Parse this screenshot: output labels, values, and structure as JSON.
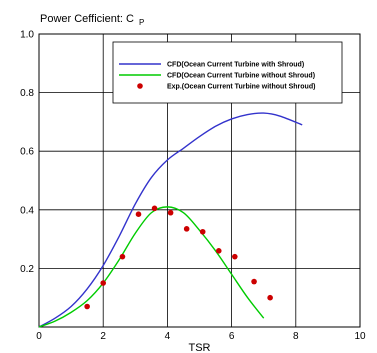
{
  "chart_data": {
    "type": "line",
    "title": "Power Cefficient: C",
    "title_subscript": "P",
    "xlabel": "TSR",
    "ylabel": "",
    "xlim": [
      0,
      10
    ],
    "ylim": [
      0,
      1.0
    ],
    "x_ticks": [
      "0",
      "2",
      "4",
      "6",
      "8",
      "10"
    ],
    "y_ticks": [
      "0.2",
      "0.4",
      "0.6",
      "0.8",
      "1.0"
    ],
    "grid": true,
    "legend_position": "top-right",
    "series": [
      {
        "name": "CFD(Ocean Current Turbine with Shroud)",
        "style": "line",
        "color": "#3333cc",
        "x": [
          0,
          0.5,
          1.0,
          1.5,
          2.0,
          2.5,
          3.0,
          3.5,
          4.0,
          4.5,
          5.0,
          5.5,
          6.0,
          6.5,
          7.0,
          7.5,
          8.2
        ],
        "y": [
          0,
          0.03,
          0.07,
          0.13,
          0.21,
          0.31,
          0.42,
          0.51,
          0.57,
          0.61,
          0.65,
          0.685,
          0.71,
          0.725,
          0.73,
          0.72,
          0.69
        ]
      },
      {
        "name": "CFD(Ocean Current Turbine without Shroud)",
        "style": "line",
        "color": "#00cc00",
        "x": [
          0,
          0.5,
          1.0,
          1.5,
          2.0,
          2.5,
          3.0,
          3.5,
          4.0,
          4.5,
          5.0,
          5.5,
          6.0,
          6.5,
          7.0
        ],
        "y": [
          0,
          0.02,
          0.05,
          0.09,
          0.15,
          0.23,
          0.32,
          0.39,
          0.41,
          0.39,
          0.33,
          0.26,
          0.18,
          0.1,
          0.03
        ]
      },
      {
        "name": "Exp.(Ocean Current Turbine without Shroud)",
        "style": "scatter",
        "color": "#cc0000",
        "x": [
          1.5,
          2.0,
          2.6,
          3.1,
          3.6,
          4.1,
          4.6,
          5.1,
          5.6,
          6.1,
          6.7,
          7.2
        ],
        "y": [
          0.07,
          0.15,
          0.24,
          0.385,
          0.405,
          0.39,
          0.335,
          0.325,
          0.26,
          0.24,
          0.155,
          0.1
        ]
      }
    ]
  }
}
